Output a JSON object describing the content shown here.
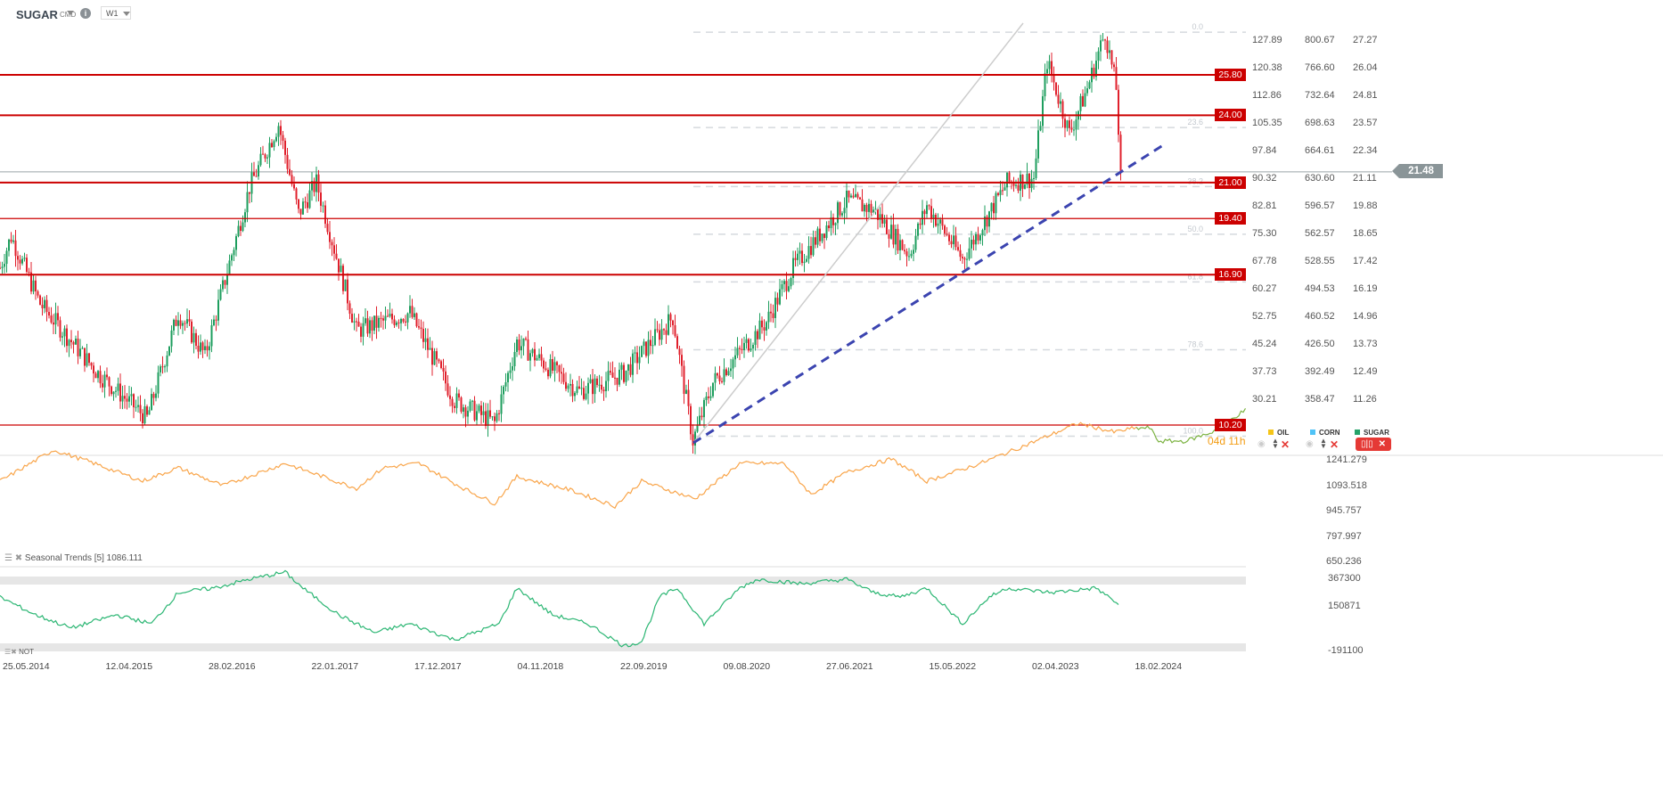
{
  "header": {
    "symbol": "SUGAR",
    "type": "CMD",
    "timeframe": "W1"
  },
  "price_axis": {
    "col1": [
      "127.89",
      "120.38",
      "112.86",
      "105.35",
      "97.84",
      "90.32",
      "82.81",
      "75.30",
      "67.78",
      "60.27",
      "52.75",
      "45.24",
      "37.73",
      "30.21"
    ],
    "col2": [
      "800.67",
      "766.60",
      "732.64",
      "698.63",
      "664.61",
      "630.60",
      "596.57",
      "562.57",
      "528.55",
      "494.53",
      "460.52",
      "426.50",
      "392.49",
      "358.47"
    ],
    "col3": [
      "27.27",
      "26.04",
      "24.81",
      "23.57",
      "22.34",
      "21.11",
      "19.88",
      "18.65",
      "17.42",
      "16.19",
      "14.96",
      "13.73",
      "12.49",
      "11.26"
    ]
  },
  "current_price": "21.48",
  "levels": [
    {
      "label": "25.80",
      "price": 25.8,
      "thick": true
    },
    {
      "label": "24.00",
      "price": 24.0,
      "thick": true
    },
    {
      "label": "21.00",
      "price": 21.0,
      "thick": true
    },
    {
      "label": "19.40",
      "price": 19.4,
      "thick": false
    },
    {
      "label": "16.90",
      "price": 16.9,
      "thick": true
    },
    {
      "label": "10.20",
      "price": 10.2,
      "thick": false
    }
  ],
  "fib": {
    "high": 27.7,
    "low": 9.7,
    "levels": [
      {
        "v": 0,
        "label": "0.0"
      },
      {
        "v": 23.6,
        "label": "23.6"
      },
      {
        "v": 38.2,
        "label": "38.2"
      },
      {
        "v": 50,
        "label": "50.0"
      },
      {
        "v": 61.8,
        "label": "61.8"
      },
      {
        "v": 78.6,
        "label": "78.6"
      },
      {
        "v": 100,
        "label": "100.0"
      }
    ]
  },
  "countdown": "04d 11h",
  "legend": [
    {
      "name": "OIL",
      "color": "#f5c518"
    },
    {
      "name": "CORN",
      "color": "#4fc3f7"
    },
    {
      "name": "SUGAR",
      "color": "#26a269"
    }
  ],
  "seasonal": {
    "label": "Seasonal  Trends  [5]  1086.111",
    "axis": [
      "1241.279",
      "1093.518",
      "945.757",
      "797.997",
      "650.236"
    ]
  },
  "cot": {
    "label": "NOT",
    "axis": [
      "367300",
      "150871",
      "-191100"
    ]
  },
  "x_axis": [
    "25.05.2014",
    "12.04.2015",
    "28.02.2016",
    "22.01.2017",
    "17.12.2017",
    "04.11.2018",
    "22.09.2019",
    "09.08.2020",
    "27.06.2021",
    "15.05.2022",
    "02.04.2023",
    "18.02.2024"
  ],
  "colors": {
    "up": "#1e9e5e",
    "down": "#e0202c",
    "level": "#cc0000",
    "trend": "#3b44b0",
    "seasonal": "#f9a54a",
    "seasonal_fc": "#7cb342",
    "cot": "#2bb673"
  },
  "chart_data": {
    "type": "candlestick",
    "interval": "weekly",
    "weeks_from": "25.05.2014",
    "price_keypoints": [
      [
        -10,
        17.2
      ],
      [
        -5,
        18.6
      ],
      [
        8,
        15.6
      ],
      [
        34,
        12.5
      ],
      [
        56,
        10.5
      ],
      [
        70,
        15.2
      ],
      [
        82,
        13.3
      ],
      [
        102,
        20.8
      ],
      [
        115,
        23.6
      ],
      [
        124,
        19.6
      ],
      [
        132,
        21.0
      ],
      [
        150,
        14.4
      ],
      [
        174,
        15.2
      ],
      [
        194,
        11.3
      ],
      [
        212,
        10.3
      ],
      [
        222,
        13.9
      ],
      [
        250,
        11.7
      ],
      [
        270,
        12.5
      ],
      [
        292,
        15.0
      ],
      [
        301,
        9.5
      ],
      [
        310,
        12.1
      ],
      [
        334,
        14.8
      ],
      [
        346,
        17.2
      ],
      [
        370,
        20.2
      ],
      [
        382,
        19.8
      ],
      [
        398,
        17.8
      ],
      [
        406,
        20.0
      ],
      [
        422,
        17.6
      ],
      [
        442,
        21.0
      ],
      [
        454,
        21.2
      ],
      [
        460,
        26.4
      ],
      [
        470,
        23.2
      ],
      [
        478,
        25.2
      ],
      [
        486,
        27.7
      ],
      [
        491,
        25.2
      ],
      [
        493,
        21.48
      ]
    ],
    "seasonal_keypoints": [
      [
        -10,
        1135
      ],
      [
        14,
        1321
      ],
      [
        30,
        1252
      ],
      [
        54,
        1135
      ],
      [
        70,
        1215
      ],
      [
        90,
        1108
      ],
      [
        118,
        1241
      ],
      [
        150,
        1092
      ],
      [
        162,
        1215
      ],
      [
        178,
        1241
      ],
      [
        198,
        1092
      ],
      [
        212,
        1002
      ],
      [
        222,
        1162
      ],
      [
        246,
        1082
      ],
      [
        266,
        986
      ],
      [
        278,
        1135
      ],
      [
        302,
        1029
      ],
      [
        322,
        1241
      ],
      [
        342,
        1241
      ],
      [
        354,
        1055
      ],
      [
        370,
        1188
      ],
      [
        390,
        1268
      ],
      [
        406,
        1135
      ],
      [
        430,
        1241
      ],
      [
        450,
        1348
      ],
      [
        474,
        1481
      ],
      [
        490,
        1428
      ],
      [
        498,
        1449
      ],
      [
        506,
        1454
      ],
      [
        510,
        1374
      ],
      [
        522,
        1374
      ],
      [
        534,
        1428
      ],
      [
        549,
        1561
      ]
    ],
    "seasonal_forecast_from_week": 500,
    "cot_keypoints": [
      [
        -10,
        223000
      ],
      [
        6,
        92000
      ],
      [
        22,
        -6000
      ],
      [
        42,
        92000
      ],
      [
        58,
        26000
      ],
      [
        70,
        256000
      ],
      [
        86,
        289000
      ],
      [
        102,
        354000
      ],
      [
        118,
        406000
      ],
      [
        126,
        288000
      ],
      [
        142,
        92000
      ],
      [
        158,
        -39000
      ],
      [
        174,
        26000
      ],
      [
        194,
        -92000
      ],
      [
        214,
        26000
      ],
      [
        222,
        289000
      ],
      [
        238,
        92000
      ],
      [
        254,
        26000
      ],
      [
        270,
        -138000
      ],
      [
        278,
        -105000
      ],
      [
        286,
        223000
      ],
      [
        294,
        289000
      ],
      [
        306,
        26000
      ],
      [
        322,
        289000
      ],
      [
        330,
        354000
      ],
      [
        350,
        321000
      ],
      [
        370,
        354000
      ],
      [
        382,
        256000
      ],
      [
        394,
        223000
      ],
      [
        406,
        289000
      ],
      [
        422,
        26000
      ],
      [
        434,
        223000
      ],
      [
        442,
        289000
      ],
      [
        462,
        256000
      ],
      [
        482,
        289000
      ],
      [
        492,
        170000
      ]
    ]
  }
}
